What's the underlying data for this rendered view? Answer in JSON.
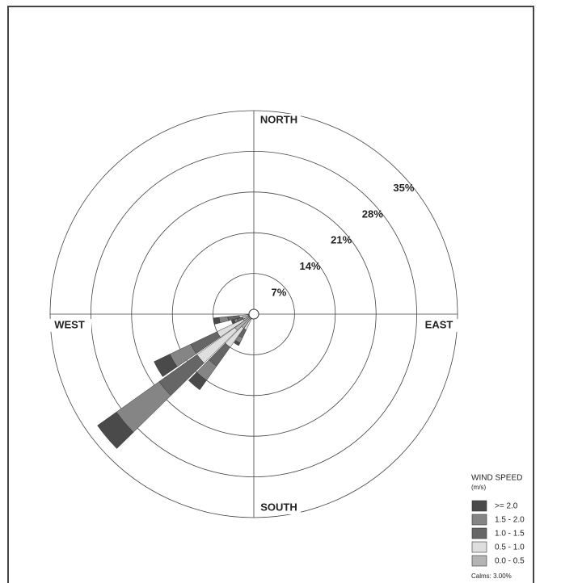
{
  "chart_data": {
    "type": "windrose",
    "directions_labels": [
      "NORTH",
      "EAST",
      "SOUTH",
      "WEST"
    ],
    "directions": [
      210,
      220,
      230,
      240,
      250,
      260
    ],
    "rlim": [
      0,
      35
    ],
    "rticks": [
      {
        "value": 7,
        "label": "7%"
      },
      {
        "value": 14,
        "label": "14%"
      },
      {
        "value": 21,
        "label": "21%"
      },
      {
        "value": 28,
        "label": "28%"
      },
      {
        "value": 35,
        "label": "35%"
      }
    ],
    "legend_title": "WIND SPEED",
    "legend_unit": "(m/s)",
    "series": [
      {
        "name": ">= 2.0",
        "color": "#4a4a4a",
        "values": [
          0.5,
          2,
          4,
          3,
          0.5,
          1
        ]
      },
      {
        "name": "1.5 - 2.0",
        "color": "#858585",
        "values": [
          1,
          3,
          9,
          4,
          0.5,
          1.5
        ]
      },
      {
        "name": "1.0 - 1.5",
        "color": "#666666",
        "values": [
          1.5,
          4,
          8,
          5,
          1,
          2
        ]
      },
      {
        "name": "0.5 - 1.0",
        "color": "#dedede",
        "values": [
          2,
          4,
          8,
          5,
          1,
          1.5
        ]
      },
      {
        "name": "0.0 - 0.5",
        "color": "#b4b4b4",
        "values": [
          1,
          3,
          4,
          2,
          1,
          1
        ]
      }
    ],
    "calms_label": "Calms: 3.00%"
  }
}
